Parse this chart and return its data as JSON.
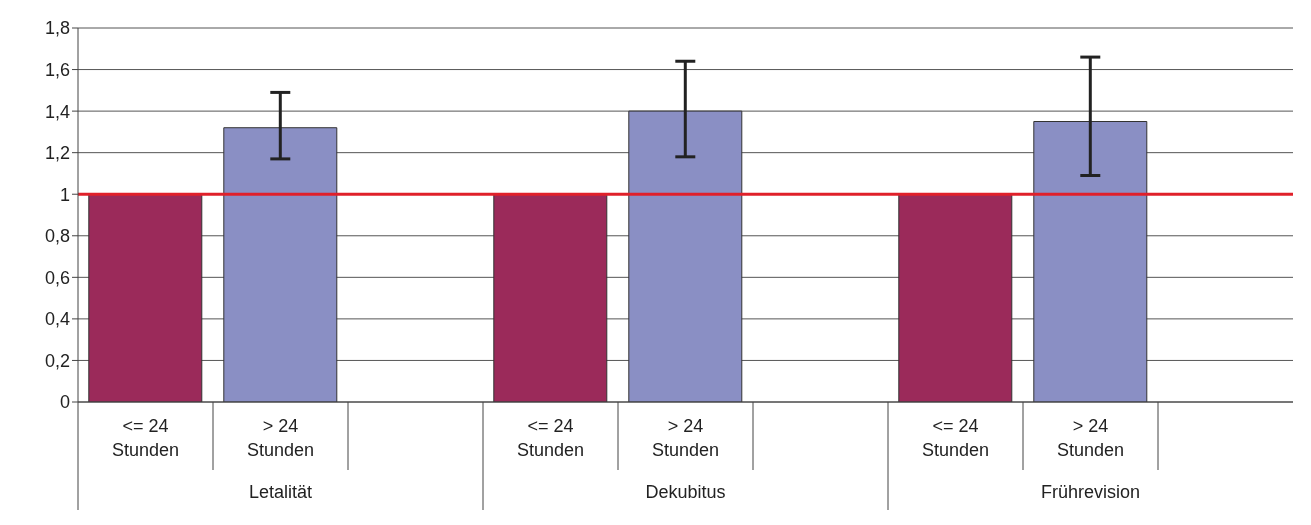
{
  "chart_data": {
    "type": "bar",
    "categories": [
      "<= 24\nStunden",
      "> 24\nStunden",
      null,
      "<= 24\nStunden",
      "> 24\nStunden",
      null,
      "<= 24\nStunden",
      "> 24\nStunden",
      null
    ],
    "values": [
      1,
      1.32,
      null,
      1,
      1.4,
      null,
      1,
      1.35,
      null
    ],
    "colors": [
      "#9b2a5a",
      "#8a8fc4",
      "#9b2a5a",
      "#9b2a5a",
      "#8a8fc4",
      "#9b2a5a",
      "#9b2a5a",
      "#8a8fc4",
      "#9b2a5a"
    ],
    "errors": [
      null,
      [
        1.17,
        1.49
      ],
      null,
      null,
      [
        1.18,
        1.64
      ],
      null,
      null,
      [
        1.09,
        1.66
      ],
      null
    ],
    "ylim": [
      0,
      1.8
    ],
    "yticks": [
      0,
      {
        "value": 0.2,
        "label": "0,2"
      },
      {
        "value": 0.4,
        "label": "0,4"
      },
      {
        "value": 0.6,
        "label": "0,6"
      },
      {
        "value": 0.8,
        "label": "0,8"
      },
      1,
      {
        "value": 1.2,
        "label": "1,2"
      },
      {
        "value": 1.4,
        "label": "1,4"
      },
      {
        "value": 1.6,
        "label": "1,6"
      },
      {
        "value": 1.8,
        "label": "1,8"
      }
    ],
    "grid": "y",
    "legend": false,
    "ref_lines": [
      {
        "axis": "y",
        "value": 1,
        "label": null,
        "color": "#e0202a"
      }
    ],
    "annotations": [
      "Letalität",
      "Dekubitus",
      "Frührevision"
    ]
  }
}
